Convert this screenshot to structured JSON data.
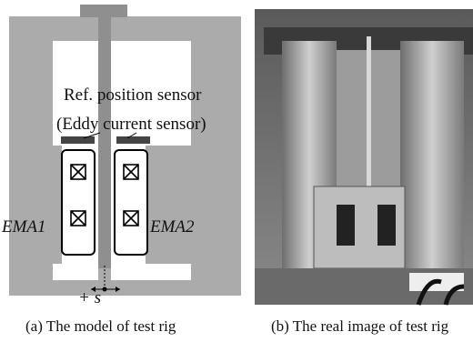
{
  "diagram": {
    "sensor_label_line1": "Ref. position sensor",
    "sensor_label_line2": "(Eddy current sensor)",
    "ema_left": "EMA1",
    "ema_right": "EMA2",
    "displacement": "+ s"
  },
  "captions": {
    "left": "(a) The model of test rig",
    "right": "(b) The real image of test rig"
  }
}
